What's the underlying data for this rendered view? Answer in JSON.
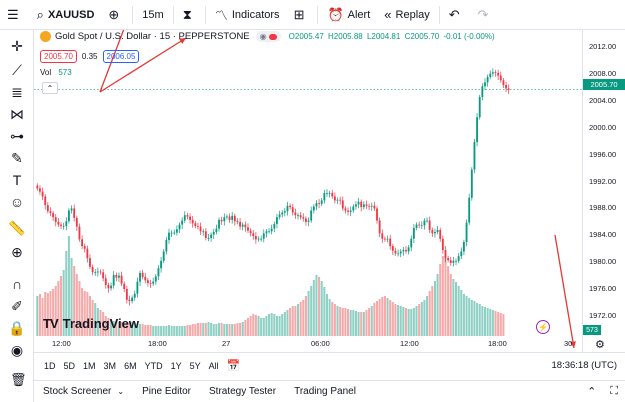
{
  "toolbar": {
    "menu_icon": "hamburger-icon",
    "symbol": "XAUUSD",
    "compare_icon": "plus-circle-icon",
    "interval": "15m",
    "indicators_label": "Indicators",
    "alert_label": "Alert",
    "replay_label": "Replay"
  },
  "legend": {
    "title": "Gold Spot / U.S. Dollar · 15 · PEPPERSTONE",
    "open": "O2005.47",
    "high": "H2005.88",
    "low": "L2004.81",
    "close": "C2005.70",
    "change": "-0.01 (-0.00%)",
    "sell_price": "2005.70",
    "spread": "0.35",
    "buy_price": "2006.05",
    "vol_label": "Vol",
    "vol_value": "573"
  },
  "price_axis": {
    "labels": [
      "2012.00",
      "2008.00",
      "2004.00",
      "2000.00",
      "1996.00",
      "1992.00",
      "1988.00",
      "1984.00",
      "1980.00",
      "1976.00",
      "1972.00"
    ],
    "last_price": "2005.70",
    "volume_tag": "573"
  },
  "time_axis": {
    "labels": [
      "12:00",
      "18:00",
      "27",
      "06:00",
      "12:00",
      "18:00",
      "30"
    ]
  },
  "logo_text": "TradingView",
  "range_bar": {
    "ranges": [
      "1D",
      "5D",
      "1M",
      "3M",
      "6M",
      "YTD",
      "1Y",
      "5Y",
      "All"
    ],
    "clock": "18:36:18 (UTC)"
  },
  "bottom_panel": {
    "tabs": [
      "Stock Screener",
      "Pine Editor",
      "Strategy Tester",
      "Trading Panel"
    ]
  },
  "colors": {
    "up": "#089981",
    "down": "#f23645",
    "vol_up": "#8fd0c5",
    "vol_down": "#f7a9a9",
    "annotation": "#e53935",
    "accent": "#2962ff"
  },
  "chart_data": {
    "type": "candlestick",
    "symbol": "XAUUSD",
    "interval": "15",
    "ylim": [
      1969,
      2014
    ],
    "x_ticks": [
      "12:00",
      "18:00",
      "27",
      "06:00",
      "12:00",
      "18:00",
      "30"
    ],
    "closes": [
      1991.0,
      1990.5,
      1989.8,
      1988.5,
      1987.6,
      1987.3,
      1986.7,
      1986.0,
      1985.6,
      1985.4,
      1985.4,
      1986.1,
      1987.7,
      1988.0,
      1986.6,
      1985.3,
      1983.4,
      1982.4,
      1982.0,
      1980.6,
      1979.3,
      1978.5,
      1978.5,
      1978.6,
      1978.5,
      1977.6,
      1976.6,
      1976.1,
      1976.5,
      1978.1,
      1977.7,
      1978.0,
      1976.8,
      1976.0,
      1974.4,
      1974.2,
      1974.7,
      1975.3,
      1977.1,
      1978.4,
      1977.8,
      1977.3,
      1976.9,
      1976.8,
      1977.1,
      1977.9,
      1979.1,
      1980.2,
      1981.6,
      1983.3,
      1984.4,
      1984.4,
      1984.4,
      1984.9,
      1985.6,
      1986.2,
      1987.0,
      1986.8,
      1986.3,
      1985.8,
      1985.4,
      1985.3,
      1984.6,
      1984.6,
      1983.6,
      1983.6,
      1984.1,
      1984.5,
      1985.0,
      1986.3,
      1986.1,
      1986.7,
      1986.8,
      1986.3,
      1986.9,
      1986.1,
      1986.0,
      1985.3,
      1985.6,
      1985.2,
      1984.7,
      1984.3,
      1983.9,
      1983.4,
      1983.5,
      1983.5,
      1984.3,
      1984.6,
      1984.6,
      1985.0,
      1985.7,
      1986.7,
      1987.1,
      1987.4,
      1987.6,
      1988.4,
      1988.2,
      1987.4,
      1987.0,
      1987.0,
      1986.7,
      1986.5,
      1986.0,
      1986.2,
      1987.7,
      1988.3,
      1988.8,
      1988.7,
      1989.2,
      1990.3,
      1990.3,
      1990.3,
      1989.8,
      1989.2,
      1989.3,
      1989.2,
      1988.0,
      1987.7,
      1987.5,
      1987.7,
      1988.3,
      1988.6,
      1989.0,
      1988.2,
      1988.6,
      1988.4,
      1988.3,
      1988.4,
      1988.0,
      1986.2,
      1984.3,
      1983.5,
      1983.4,
      1983.5,
      1982.4,
      1981.7,
      1981.3,
      1981.3,
      1981.6,
      1981.8,
      1981.6,
      1982.2,
      1983.5,
      1985.1,
      1985.6,
      1985.5,
      1985.5,
      1986.2,
      1986.2,
      1984.8,
      1984.3,
      1984.5,
      1984.8,
      1983.5,
      1981.8,
      1980.6,
      1980.3,
      1979.9,
      1980.2,
      1980.2,
      1980.9,
      1981.6,
      1983.0,
      1985.9,
      1989.6,
      1993.8,
      1997.9,
      2001.6,
      2004.6,
      2006.2,
      2006.8,
      2007.6,
      2008.1,
      2008.3,
      2008.2,
      2007.8,
      2007.1,
      2006.4,
      2005.9,
      2005.7
    ],
    "volumes": [
      0.4,
      0.42,
      0.38,
      0.44,
      0.43,
      0.45,
      0.47,
      0.5,
      0.55,
      0.6,
      0.66,
      0.85,
      1.0,
      0.78,
      0.7,
      0.62,
      0.55,
      0.48,
      0.45,
      0.44,
      0.4,
      0.36,
      0.33,
      0.28,
      0.26,
      0.24,
      0.2,
      0.18,
      0.16,
      0.15,
      0.15,
      0.14,
      0.14,
      0.13,
      0.13,
      0.14,
      0.14,
      0.13,
      0.12,
      0.12,
      0.12,
      0.11,
      0.11,
      0.11,
      0.1,
      0.1,
      0.1,
      0.1,
      0.1,
      0.1,
      0.11,
      0.1,
      0.1,
      0.1,
      0.1,
      0.1,
      0.1,
      0.11,
      0.11,
      0.12,
      0.12,
      0.13,
      0.13,
      0.13,
      0.13,
      0.14,
      0.13,
      0.12,
      0.12,
      0.13,
      0.13,
      0.12,
      0.12,
      0.12,
      0.12,
      0.12,
      0.13,
      0.13,
      0.14,
      0.16,
      0.18,
      0.2,
      0.22,
      0.21,
      0.2,
      0.18,
      0.18,
      0.2,
      0.22,
      0.23,
      0.22,
      0.2,
      0.2,
      0.22,
      0.24,
      0.26,
      0.28,
      0.3,
      0.3,
      0.32,
      0.34,
      0.36,
      0.4,
      0.45,
      0.5,
      0.56,
      0.61,
      0.59,
      0.55,
      0.49,
      0.42,
      0.37,
      0.34,
      0.32,
      0.3,
      0.29,
      0.28,
      0.28,
      0.27,
      0.26,
      0.26,
      0.25,
      0.24,
      0.24,
      0.24,
      0.26,
      0.28,
      0.3,
      0.33,
      0.35,
      0.37,
      0.39,
      0.4,
      0.38,
      0.36,
      0.34,
      0.32,
      0.31,
      0.3,
      0.29,
      0.28,
      0.27,
      0.27,
      0.28,
      0.3,
      0.32,
      0.34,
      0.36,
      0.4,
      0.45,
      0.5,
      0.55,
      0.62,
      0.72,
      0.8,
      0.78,
      0.7,
      0.62,
      0.57,
      0.54,
      0.5,
      0.46,
      0.42,
      0.4,
      0.38,
      0.36,
      0.35,
      0.33,
      0.32,
      0.3,
      0.29,
      0.28,
      0.27,
      0.26,
      0.25,
      0.24,
      0.23,
      0.22
    ]
  }
}
